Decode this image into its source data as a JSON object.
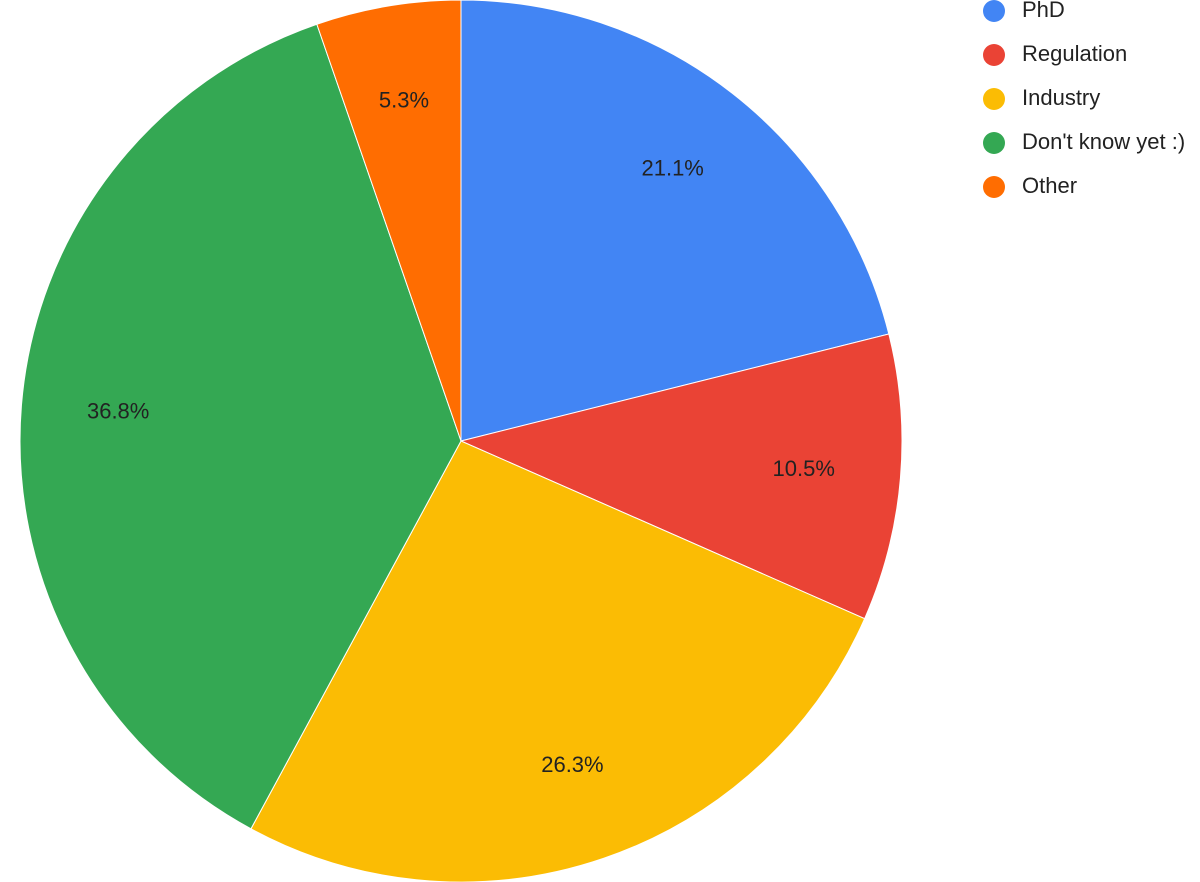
{
  "chart_data": {
    "type": "pie",
    "categories": [
      "PhD",
      "Regulation",
      "Industry",
      "Don't know yet :)",
      "Other"
    ],
    "values": [
      21.1,
      10.5,
      26.3,
      36.8,
      5.3
    ],
    "value_labels": [
      "21.1%",
      "10.5%",
      "26.3%",
      "36.8%",
      "5.3%"
    ],
    "colors": [
      "#4285f4",
      "#ea4335",
      "#fbbc04",
      "#34a853",
      "#ff6d01"
    ],
    "legend": "top-right"
  }
}
